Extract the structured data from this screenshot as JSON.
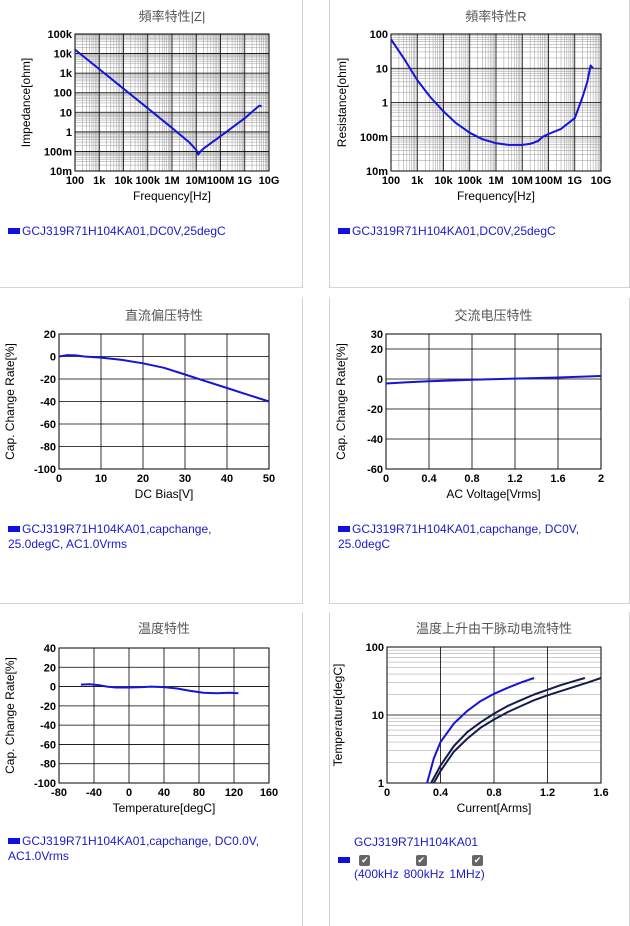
{
  "colors": {
    "curve": "#1515d8",
    "grid_major": "#000000",
    "grid_minor": "#9a9a9a",
    "legend_text": "#1a1acc",
    "dark_curve": "#141c4c"
  },
  "legend_icons": [
    "legend-swatch-icon",
    "checkbox-checked-icon"
  ],
  "charts": [
    {
      "id": "impedance",
      "chart_data": {
        "type": "line",
        "title": "頻率特性|Z|",
        "xlabel": "Frequency[Hz]",
        "ylabel": "Impedance[ohm]",
        "xscale": "log",
        "yscale": "log",
        "xlim": [
          100,
          10000000000
        ],
        "ylim": [
          0.01,
          100000
        ],
        "x_ticks": [
          100,
          1000,
          10000,
          100000,
          1000000,
          10000000,
          100000000,
          1000000000,
          10000000000
        ],
        "x_tick_labels": [
          "100",
          "1k",
          "10k",
          "100k",
          "1M",
          "10M",
          "100M",
          "1G",
          "10G"
        ],
        "y_ticks": [
          0.01,
          0.1,
          1,
          10,
          100,
          1000,
          10000,
          100000
        ],
        "y_tick_labels": [
          "10m",
          "100m",
          "1",
          "10",
          "100",
          "1k",
          "10k",
          "100k"
        ],
        "grid": true,
        "series": [
          {
            "name": "GCJ319R71H104KA01,DC0V,25degC",
            "x": [
              100,
              1000,
              10000,
              100000,
              1000000,
              5000000,
              10000000,
              12000000,
              15000000,
              20000000,
              100000000,
              1000000000,
              4000000000,
              5000000000
            ],
            "y": [
              16000,
              1600,
              160,
              16,
              1.6,
              0.3,
              0.12,
              0.07,
              0.1,
              0.14,
              0.6,
              5,
              22,
              20
            ]
          }
        ]
      },
      "legend": "GCJ319R71H104KA01,DC0V,25degC"
    },
    {
      "id": "resistance",
      "chart_data": {
        "type": "line",
        "title": "頻率特性R",
        "xlabel": "Frequency[Hz]",
        "ylabel": "Resistance[ohm]",
        "xscale": "log",
        "yscale": "log",
        "xlim": [
          100,
          10000000000
        ],
        "ylim": [
          0.01,
          100
        ],
        "x_ticks": [
          100,
          1000,
          10000,
          100000,
          1000000,
          10000000,
          100000000,
          1000000000,
          10000000000
        ],
        "x_tick_labels": [
          "100",
          "1k",
          "10k",
          "100k",
          "1M",
          "10M",
          "100M",
          "1G",
          "10G"
        ],
        "y_ticks": [
          0.01,
          0.1,
          1,
          10,
          100
        ],
        "y_tick_labels": [
          "10m",
          "100m",
          "1",
          "10",
          "100"
        ],
        "grid": true,
        "series": [
          {
            "name": "GCJ319R71H104KA01,DC0V,25degC",
            "x": [
              100,
              300,
              1000,
              3000,
              10000,
              30000,
              100000,
              300000,
              1000000,
              3000000,
              10000000,
              20000000,
              40000000,
              60000000,
              100000000,
              300000000,
              1000000000,
              2000000000,
              3000000000,
              4000000000,
              5000000000
            ],
            "y": [
              70,
              20,
              4.5,
              1.5,
              0.55,
              0.25,
              0.13,
              0.085,
              0.065,
              0.058,
              0.058,
              0.062,
              0.075,
              0.1,
              0.12,
              0.17,
              0.35,
              1.5,
              4,
              12,
              10
            ]
          }
        ]
      },
      "legend": "GCJ319R71H104KA01,DC0V,25degC"
    },
    {
      "id": "dcbias",
      "chart_data": {
        "type": "line",
        "title": "直流偏压特性",
        "xlabel": "DC Bias[V]",
        "ylabel": "Cap. Change Rate[%]",
        "xlim": [
          0,
          50
        ],
        "ylim": [
          -100,
          20
        ],
        "x_ticks": [
          0,
          10,
          20,
          30,
          40,
          50
        ],
        "y_ticks": [
          -100,
          -80,
          -60,
          -40,
          -20,
          0,
          20
        ],
        "grid": true,
        "series": [
          {
            "name": "GCJ319R71H104KA01,capchange, 25.0degC, AC1.0Vrms",
            "x": [
              0,
              2,
              4,
              6,
              10,
              15,
              20,
              25,
              30,
              35,
              40,
              45,
              50
            ],
            "y": [
              0,
              1.2,
              1,
              0,
              -1,
              -3,
              -6,
              -10,
              -16,
              -22,
              -28,
              -34,
              -40
            ]
          }
        ]
      },
      "legend": [
        "GCJ319R71H104KA01,capchange,",
        "25.0degC, AC1.0Vrms"
      ]
    },
    {
      "id": "acvoltage",
      "chart_data": {
        "type": "line",
        "title": "交流电压特性",
        "xlabel": "AC Voltage[Vrms]",
        "ylabel": "Cap. Change Rate[%]",
        "xlim": [
          0,
          2
        ],
        "ylim": [
          -60,
          30
        ],
        "x_ticks": [
          0,
          0.4,
          0.8,
          1.2,
          1.6,
          2
        ],
        "y_ticks": [
          -60,
          -40,
          -20,
          0,
          20,
          30
        ],
        "grid": true,
        "series": [
          {
            "name": "GCJ319R71H104KA01,capchange, DC0V, 25.0degC",
            "x": [
              0,
              0.2,
              0.4,
              0.8,
              1.2,
              1.6,
              2
            ],
            "y": [
              -3,
              -2.2,
              -1.5,
              -0.5,
              0.3,
              1,
              2
            ]
          }
        ]
      },
      "legend": [
        "GCJ319R71H104KA01,capchange, DC0V,",
        "25.0degC"
      ]
    },
    {
      "id": "temperature",
      "chart_data": {
        "type": "line",
        "title": "温度特性",
        "xlabel": "Temperature[degC]",
        "ylabel": "Cap. Change Rate[%]",
        "xlim": [
          -80,
          160
        ],
        "ylim": [
          -100,
          40
        ],
        "x_ticks": [
          -80,
          -40,
          0,
          40,
          80,
          120,
          160
        ],
        "y_ticks": [
          -100,
          -80,
          -60,
          -40,
          -20,
          0,
          20,
          40
        ],
        "grid": true,
        "series": [
          {
            "name": "GCJ319R71H104KA01,capchange, DC0.0V, AC1.0Vrms",
            "x": [
              -55,
              -45,
              -35,
              -25,
              -15,
              0,
              15,
              25,
              40,
              55,
              70,
              85,
              100,
              115,
              125
            ],
            "y": [
              2,
              2.5,
              1.5,
              0,
              -1,
              -1,
              -0.5,
              0,
              -0.5,
              -2,
              -4.5,
              -6.5,
              -7,
              -6.5,
              -7
            ]
          }
        ]
      },
      "legend": [
        "GCJ319R71H104KA01,capchange, DC0.0V,",
        "AC1.0Vrms"
      ]
    },
    {
      "id": "ripple",
      "chart_data": {
        "type": "line",
        "title": "温度上升由干脉动电流特性",
        "xlabel": "Current[Arms]",
        "ylabel": "Temperature[degC]",
        "xlim": [
          0,
          1.6
        ],
        "ylim": [
          1,
          100
        ],
        "yscale": "log",
        "x_ticks": [
          0,
          0.4,
          0.8,
          1.2,
          1.6
        ],
        "y_ticks": [
          1,
          10,
          100
        ],
        "grid": true,
        "series": [
          {
            "name": "400kHz",
            "x": [
              0.3,
              0.35,
              0.4,
              0.5,
              0.6,
              0.7,
              0.8,
              0.9,
              1.0,
              1.1
            ],
            "y": [
              1,
              2.3,
              4,
              7.5,
              11.5,
              16,
              20.5,
              25,
              30,
              35
            ]
          },
          {
            "name": "800kHz",
            "x": [
              0.33,
              0.4,
              0.5,
              0.6,
              0.7,
              0.8,
              0.9,
              1.0,
              1.1,
              1.2,
              1.3,
              1.4,
              1.48
            ],
            "y": [
              1,
              1.8,
              3.5,
              5.6,
              7.8,
              10.5,
              13.5,
              16.5,
              20,
              23.5,
              27.5,
              31.5,
              35
            ]
          },
          {
            "name": "1MHz",
            "x": [
              0.35,
              0.4,
              0.5,
              0.6,
              0.7,
              0.8,
              0.9,
              1.0,
              1.1,
              1.2,
              1.3,
              1.4,
              1.5,
              1.6
            ],
            "y": [
              1,
              1.5,
              2.9,
              4.5,
              6.5,
              8.6,
              11,
              13.5,
              16.5,
              19.5,
              22.5,
              26,
              30,
              35
            ]
          }
        ]
      },
      "legend": "GCJ319R71H104KA01",
      "checkboxes": [
        "400kHz",
        "800kHz",
        "1MHz"
      ]
    }
  ]
}
